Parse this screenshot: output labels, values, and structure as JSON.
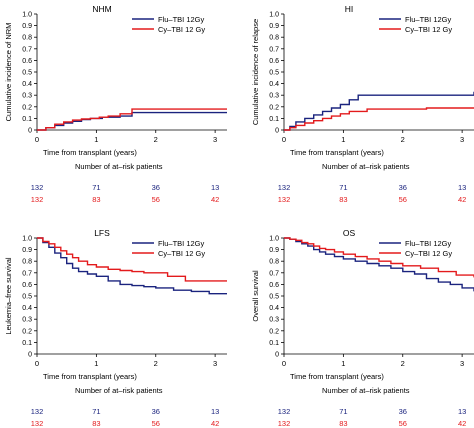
{
  "colors": {
    "series1": "#1a237e",
    "series2": "#e31a1c",
    "axis": "#000000"
  },
  "chart_data": [
    {
      "type": "line",
      "title": "NHM",
      "ylabel": "Cumulative incidence of NRM",
      "xlabel": "Time from transplant (years)",
      "xlim": [
        0,
        3.2
      ],
      "ylim": [
        0,
        1.0
      ],
      "xticks": [
        0,
        1,
        2,
        3
      ],
      "yticks": [
        0,
        0.1,
        0.2,
        0.3,
        0.4,
        0.5,
        0.6,
        0.7,
        0.8,
        0.9,
        1.0
      ],
      "ytick_labels": [
        "0",
        "0.1",
        "0.2",
        "0.3",
        "0.4",
        "0.5",
        "0.6",
        "0.7",
        "0.8",
        "0.9",
        "1.0"
      ],
      "legend_position": "top-right",
      "series": [
        {
          "name": "Flu–TBI 12Gy",
          "color": "#1a237e",
          "x": [
            0,
            0.15,
            0.3,
            0.45,
            0.6,
            0.75,
            0.9,
            1.1,
            1.4,
            1.6,
            3.2
          ],
          "y": [
            0,
            0.02,
            0.04,
            0.06,
            0.075,
            0.09,
            0.1,
            0.11,
            0.12,
            0.15,
            0.15
          ]
        },
        {
          "name": "Cy–TBI 12 Gy",
          "color": "#e31a1c",
          "x": [
            0,
            0.15,
            0.3,
            0.45,
            0.6,
            0.75,
            0.9,
            1.05,
            1.2,
            1.4,
            1.6,
            3.2
          ],
          "y": [
            0,
            0.02,
            0.05,
            0.07,
            0.085,
            0.095,
            0.1,
            0.11,
            0.12,
            0.14,
            0.18,
            0.18
          ]
        }
      ],
      "at_risk_title": "Number of at–risk patients",
      "at_risk": [
        [
          "132",
          "71",
          "36",
          "13"
        ],
        [
          "132",
          "83",
          "56",
          "42"
        ]
      ]
    },
    {
      "type": "line",
      "title": "HI",
      "ylabel": "Cumulative incidence of relapse",
      "xlabel": "Time from transplant (years)",
      "xlim": [
        0,
        3.2
      ],
      "ylim": [
        0,
        1.0
      ],
      "xticks": [
        0,
        1,
        2,
        3
      ],
      "yticks": [
        0,
        0.1,
        0.2,
        0.3,
        0.4,
        0.5,
        0.6,
        0.7,
        0.8,
        0.9,
        1.0
      ],
      "ytick_labels": [
        "0",
        "0.1",
        "0.2",
        "0.3",
        "0.4",
        "0.5",
        "0.6",
        "0.7",
        "0.8",
        "0.9",
        "1.0"
      ],
      "legend_position": "top-right",
      "series": [
        {
          "name": "Flu–TBI 12Gy",
          "color": "#1a237e",
          "x": [
            0,
            0.1,
            0.2,
            0.35,
            0.5,
            0.65,
            0.8,
            0.95,
            1.1,
            1.25,
            2.0,
            3.2
          ],
          "y": [
            0,
            0.03,
            0.07,
            0.1,
            0.13,
            0.16,
            0.19,
            0.22,
            0.26,
            0.3,
            0.3,
            0.33
          ]
        },
        {
          "name": "Cy–TBI 12 Gy",
          "color": "#e31a1c",
          "x": [
            0,
            0.1,
            0.2,
            0.35,
            0.5,
            0.65,
            0.8,
            0.95,
            1.1,
            1.4,
            2.4,
            3.2
          ],
          "y": [
            0,
            0.02,
            0.04,
            0.06,
            0.08,
            0.1,
            0.12,
            0.14,
            0.16,
            0.18,
            0.19,
            0.19
          ]
        }
      ],
      "at_risk_title": "Number of at–risk patients",
      "at_risk": [
        [
          "132",
          "71",
          "36",
          "13"
        ],
        [
          "132",
          "83",
          "56",
          "42"
        ]
      ]
    },
    {
      "type": "line",
      "title": "LFS",
      "ylabel": "Leukemia–free survival",
      "xlabel": "Time from transplant (years)",
      "xlim": [
        0,
        3.2
      ],
      "ylim": [
        0,
        1.0
      ],
      "xticks": [
        0,
        1,
        2,
        3
      ],
      "yticks": [
        0,
        0.1,
        0.2,
        0.3,
        0.4,
        0.5,
        0.6,
        0.7,
        0.8,
        0.9,
        1.0
      ],
      "ytick_labels": [
        "0",
        "0.1",
        "0.2",
        "0.3",
        "0.4",
        "0.5",
        "0.6",
        "0.7",
        "0.8",
        "0.9",
        "1.0"
      ],
      "legend_position": "top-right",
      "series": [
        {
          "name": "Flu–TBI 12Gy",
          "color": "#1a237e",
          "x": [
            0,
            0.1,
            0.2,
            0.3,
            0.4,
            0.5,
            0.6,
            0.7,
            0.85,
            1.0,
            1.2,
            1.4,
            1.6,
            1.8,
            2.0,
            2.3,
            2.6,
            2.9,
            3.2
          ],
          "y": [
            1.0,
            0.96,
            0.92,
            0.87,
            0.83,
            0.78,
            0.74,
            0.71,
            0.69,
            0.67,
            0.63,
            0.6,
            0.59,
            0.58,
            0.57,
            0.55,
            0.54,
            0.52,
            0.52
          ]
        },
        {
          "name": "Cy–TBI 12 Gy",
          "color": "#e31a1c",
          "x": [
            0,
            0.1,
            0.2,
            0.3,
            0.4,
            0.5,
            0.6,
            0.7,
            0.85,
            1.0,
            1.2,
            1.4,
            1.6,
            1.8,
            2.2,
            2.5,
            3.2
          ],
          "y": [
            1.0,
            0.97,
            0.95,
            0.92,
            0.89,
            0.86,
            0.83,
            0.8,
            0.77,
            0.75,
            0.73,
            0.72,
            0.71,
            0.7,
            0.67,
            0.63,
            0.63
          ]
        }
      ],
      "at_risk_title": "Number of at–risk patients",
      "at_risk": [
        [
          "132",
          "71",
          "36",
          "13"
        ],
        [
          "132",
          "83",
          "56",
          "42"
        ]
      ]
    },
    {
      "type": "line",
      "title": "OS",
      "ylabel": "Overall survival",
      "xlabel": "Time from transplant (years)",
      "xlim": [
        0,
        3.2
      ],
      "ylim": [
        0,
        1.0
      ],
      "xticks": [
        0,
        1,
        2,
        3
      ],
      "yticks": [
        0,
        0.1,
        0.2,
        0.3,
        0.4,
        0.5,
        0.6,
        0.7,
        0.8,
        0.9,
        1.0
      ],
      "ytick_labels": [
        "0",
        "0.1",
        "0.2",
        "0.3",
        "0.4",
        "0.5",
        "0.6",
        "0.7",
        "0.8",
        "0.9",
        "1.0"
      ],
      "legend_position": "top-right",
      "series": [
        {
          "name": "Flu–TBI 12Gy",
          "color": "#1a237e",
          "x": [
            0,
            0.1,
            0.2,
            0.3,
            0.4,
            0.5,
            0.6,
            0.7,
            0.85,
            1.0,
            1.2,
            1.4,
            1.6,
            1.8,
            2.0,
            2.2,
            2.4,
            2.6,
            2.8,
            3.0,
            3.2
          ],
          "y": [
            1.0,
            0.99,
            0.97,
            0.95,
            0.93,
            0.9,
            0.88,
            0.86,
            0.84,
            0.82,
            0.8,
            0.78,
            0.76,
            0.74,
            0.71,
            0.69,
            0.65,
            0.62,
            0.6,
            0.57,
            0.54
          ]
        },
        {
          "name": "Cy–TBI 12 Gy",
          "color": "#e31a1c",
          "x": [
            0,
            0.1,
            0.2,
            0.3,
            0.4,
            0.5,
            0.6,
            0.7,
            0.85,
            1.0,
            1.2,
            1.4,
            1.6,
            1.8,
            2.0,
            2.3,
            2.6,
            2.9,
            3.2
          ],
          "y": [
            1.0,
            0.99,
            0.98,
            0.96,
            0.95,
            0.93,
            0.91,
            0.9,
            0.88,
            0.86,
            0.84,
            0.82,
            0.8,
            0.78,
            0.76,
            0.74,
            0.71,
            0.68,
            0.66
          ]
        }
      ],
      "at_risk_title": "Number of at–risk patients",
      "at_risk": [
        [
          "132",
          "71",
          "36",
          "13"
        ],
        [
          "132",
          "83",
          "56",
          "42"
        ]
      ]
    }
  ]
}
